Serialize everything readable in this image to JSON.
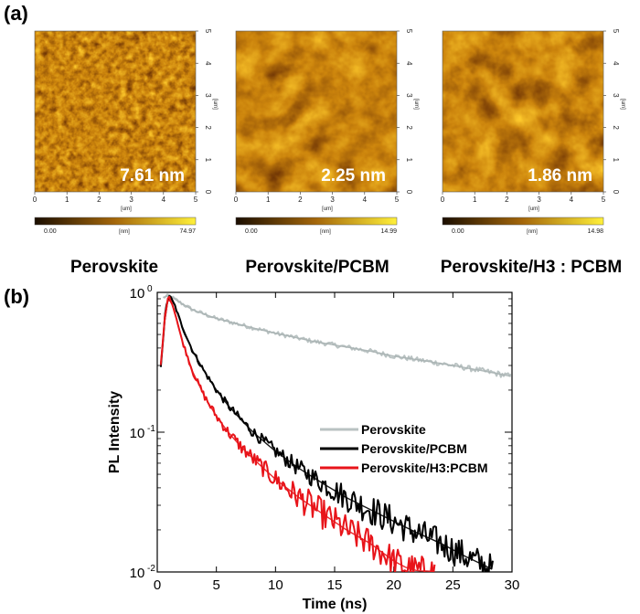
{
  "panels": {
    "a_label": "(a)",
    "b_label": "(b)"
  },
  "afm": {
    "axis_unit": "[um]",
    "colorbar_unit": "[nm]",
    "ticks": [
      "0",
      "1",
      "2",
      "3",
      "4",
      "5"
    ],
    "colors": {
      "dark": "#1a0d00",
      "mid": "#a5670a",
      "light": "#fff03a"
    },
    "images": [
      {
        "name": "Perovskite",
        "roughness": "7.61 nm",
        "cbar_min": "0.00",
        "cbar_max": "74.97",
        "grain": "fine"
      },
      {
        "name": "Perovskite/PCBM",
        "roughness": "2.25 nm",
        "cbar_min": "0.00",
        "cbar_max": "14.99",
        "grain": "coarse"
      },
      {
        "name": "Perovskite/H3 : PCBM",
        "roughness": "1.86 nm",
        "cbar_min": "0.00",
        "cbar_max": "14.98",
        "grain": "coarse"
      }
    ]
  },
  "chart_data": {
    "type": "line",
    "title": "",
    "xlabel": "Time (ns)",
    "ylabel": "PL Intensity",
    "xlim": [
      0,
      30
    ],
    "ylim": [
      0.01,
      1
    ],
    "yscale": "log",
    "x_ticks": [
      0,
      5,
      10,
      15,
      20,
      25,
      30
    ],
    "y_ticks": [
      {
        "value": 1,
        "label": "10",
        "exp": "0"
      },
      {
        "value": 0.1,
        "label": "10",
        "exp": "-1"
      },
      {
        "value": 0.01,
        "label": "10",
        "exp": "-2"
      }
    ],
    "legend_position": "center-right",
    "series": [
      {
        "name": "Perovskite",
        "color": "#b9c2c2",
        "x": [
          0.5,
          1,
          2,
          3,
          5,
          8,
          10,
          13,
          15,
          18,
          20,
          23,
          25,
          28,
          30
        ],
        "y": [
          0.92,
          0.95,
          0.84,
          0.75,
          0.65,
          0.56,
          0.51,
          0.45,
          0.42,
          0.38,
          0.35,
          0.32,
          0.3,
          0.27,
          0.25
        ]
      },
      {
        "name": "Perovskite/PCBM",
        "color": "#000000",
        "x": [
          0.3,
          0.7,
          1,
          1.5,
          2,
          3,
          4,
          5,
          6,
          7,
          8,
          9,
          10,
          12,
          14,
          16,
          18,
          20,
          22,
          24,
          26,
          28,
          28.5
        ],
        "y": [
          0.3,
          0.75,
          0.96,
          0.8,
          0.6,
          0.38,
          0.27,
          0.2,
          0.155,
          0.125,
          0.102,
          0.086,
          0.073,
          0.055,
          0.043,
          0.034,
          0.028,
          0.023,
          0.019,
          0.016,
          0.013,
          0.0108,
          0.0102
        ]
      },
      {
        "name": "Perovskite/H3:PCBM",
        "color": "#e8141a",
        "x": [
          0.3,
          0.7,
          1,
          1.5,
          2,
          3,
          4,
          5,
          6,
          7,
          8,
          9,
          10,
          12,
          14,
          16,
          18,
          20,
          21,
          22,
          23.5
        ],
        "y": [
          0.3,
          0.75,
          0.96,
          0.72,
          0.48,
          0.27,
          0.18,
          0.13,
          0.1,
          0.08,
          0.066,
          0.055,
          0.046,
          0.034,
          0.026,
          0.02,
          0.016,
          0.012,
          0.0108,
          0.0102,
          0.0101
        ]
      }
    ]
  }
}
